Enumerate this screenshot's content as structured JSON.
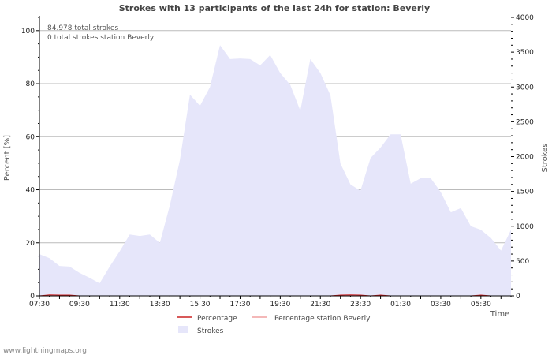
{
  "chart_data": {
    "type": "area",
    "title": "Strokes with 13 participants of the last 24h for station: Beverly",
    "info_lines": [
      "84.978 total strokes",
      "0 total strokes station Beverly"
    ],
    "y_left": {
      "label": "Percent   [%]",
      "range": [
        0,
        105
      ],
      "ticks": [
        0,
        20,
        40,
        60,
        80,
        100
      ]
    },
    "y_right": {
      "label": "Strokes",
      "range": [
        0,
        4000
      ],
      "ticks": [
        0,
        500,
        1000,
        1500,
        2000,
        2500,
        3000,
        3500,
        4000
      ]
    },
    "x_label": "Time",
    "x_ticks": [
      "07:30",
      "09:30",
      "11:30",
      "13:30",
      "15:30",
      "17:30",
      "19:30",
      "21:30",
      "23:30",
      "01:30",
      "03:30",
      "05:30"
    ],
    "x_count": 48,
    "series": [
      {
        "name": "Strokes",
        "axis": "right",
        "color": "#e6e6fa",
        "values": [
          600,
          540,
          430,
          420,
          330,
          260,
          180,
          420,
          640,
          880,
          860,
          880,
          760,
          1300,
          1950,
          2890,
          2730,
          3000,
          3600,
          3400,
          3410,
          3400,
          3310,
          3460,
          3200,
          3030,
          2660,
          3400,
          3200,
          2880,
          1900,
          1600,
          1510,
          1980,
          2130,
          2320,
          2320,
          1610,
          1690,
          1690,
          1490,
          1200,
          1260,
          1000,
          950,
          830,
          650,
          950
        ]
      },
      {
        "name": "Percentage",
        "axis": "left",
        "color": "#cc2222",
        "values": [
          0.0,
          0.4,
          0.3,
          0.3,
          0.0,
          0.0,
          0.0,
          0.0,
          0.0,
          0.0,
          0.0,
          0.0,
          0.0,
          0.0,
          0.0,
          0.0,
          0.0,
          0.0,
          0.0,
          0.0,
          0.0,
          0.0,
          0.0,
          0.0,
          0.0,
          0.0,
          0.0,
          0.0,
          0.0,
          0.0,
          0.3,
          0.4,
          0.3,
          0.0,
          0.3,
          0.0,
          0.0,
          0.0,
          0.0,
          0.0,
          0.0,
          0.0,
          0.0,
          0.0,
          0.3,
          0.0,
          0.0,
          0.0
        ]
      },
      {
        "name": "Percentage station Beverly",
        "axis": "left",
        "color": "#f0a0a0",
        "values": []
      }
    ],
    "legend": [
      "Percentage",
      "Percentage station Beverly",
      "Strokes"
    ]
  },
  "footer": "www.lightningmaps.org"
}
